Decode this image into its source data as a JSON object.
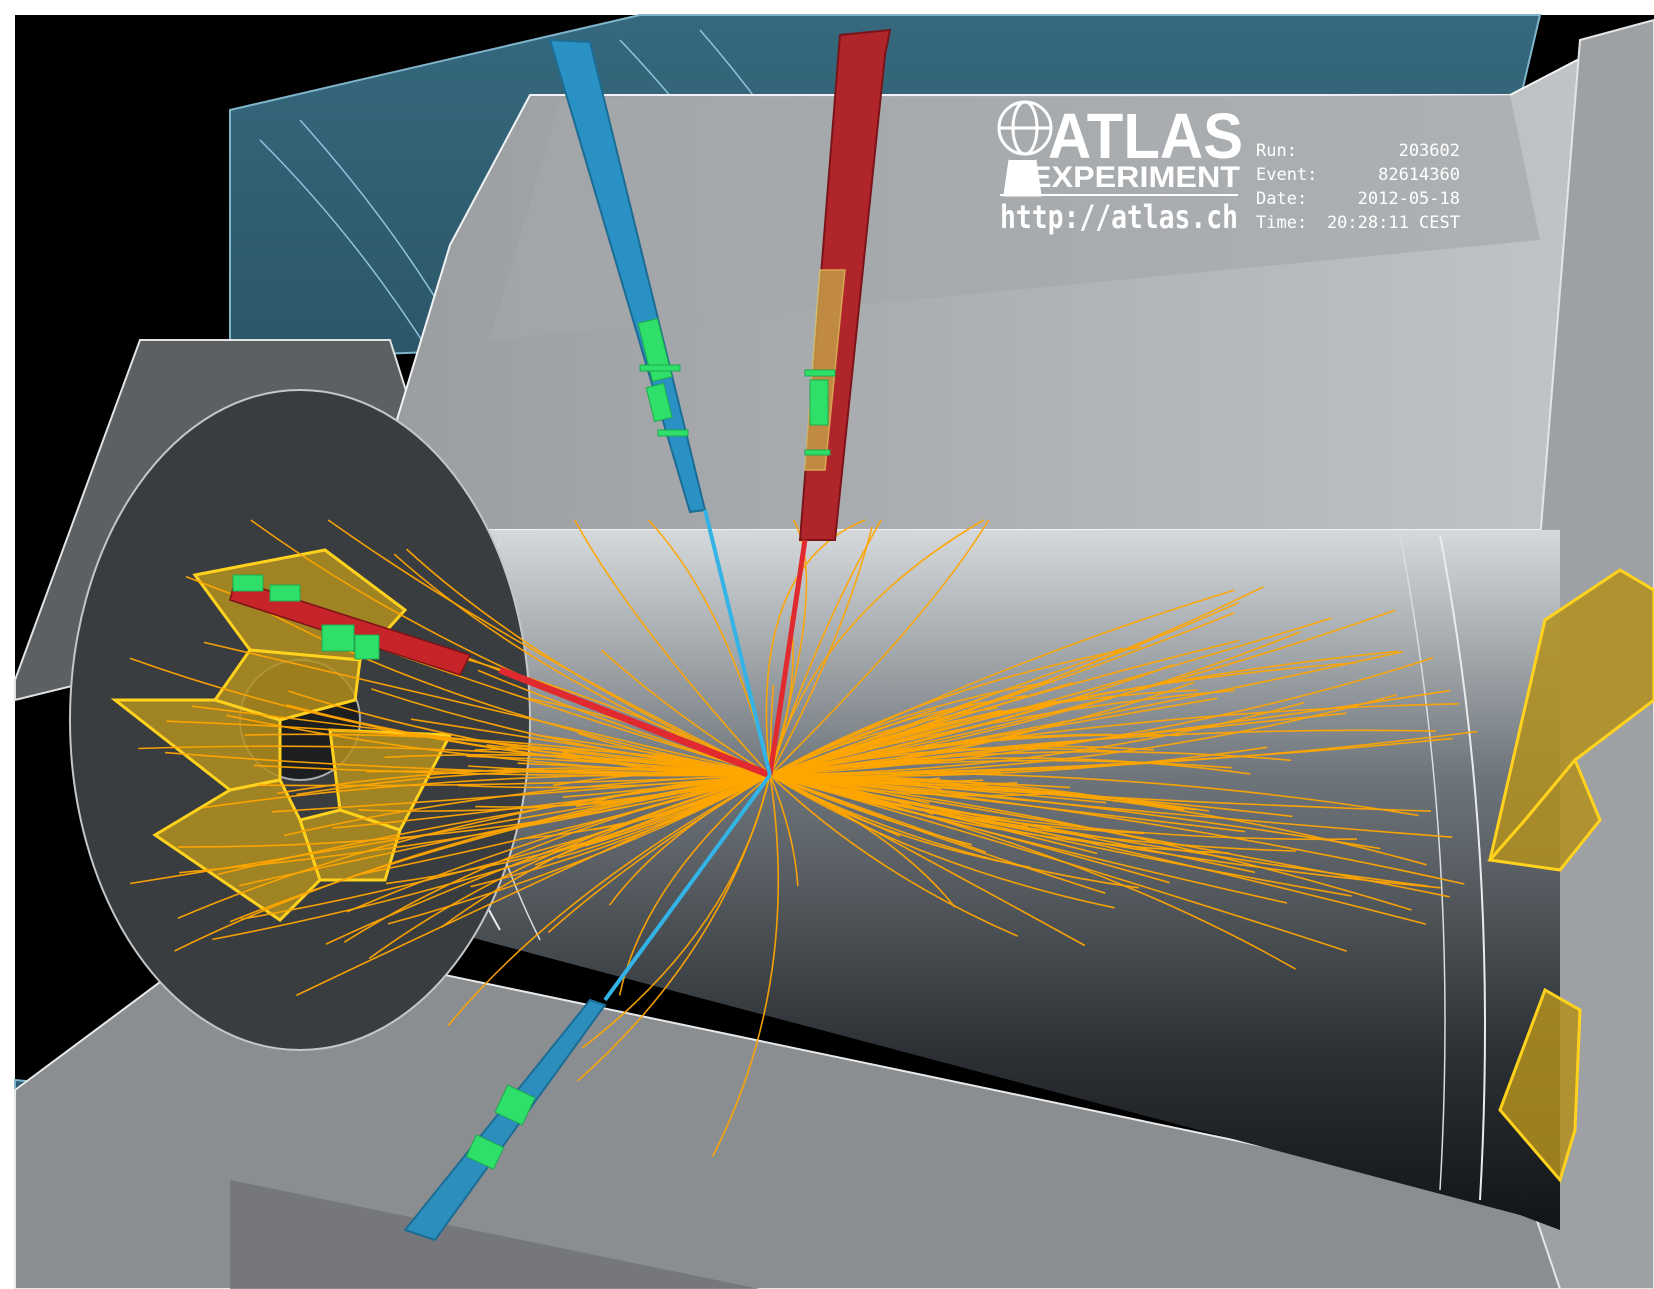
{
  "logo": {
    "title": "ATLAS",
    "subtitle": "EXPERIMENT",
    "url": "http://atlas.ch"
  },
  "event_info": [
    {
      "label": "Run:",
      "value": "203602"
    },
    {
      "label": "Event:",
      "value": "82614360"
    },
    {
      "label": "Date:",
      "value": "2012-05-18"
    },
    {
      "label": "Time:",
      "value": "20:28:11 CEST"
    }
  ],
  "colors": {
    "background": "#000000",
    "muon_chamber": "#2f5e73",
    "calorimeter_panel": "#8c8f92",
    "inner_detector": "#2a2d30",
    "tracks": "#ffa500",
    "electron_red": "#d4202a",
    "muon_blue": "#2ba3d8",
    "hit_green": "#33e06b",
    "endcap_gold": "#e5b00e"
  }
}
